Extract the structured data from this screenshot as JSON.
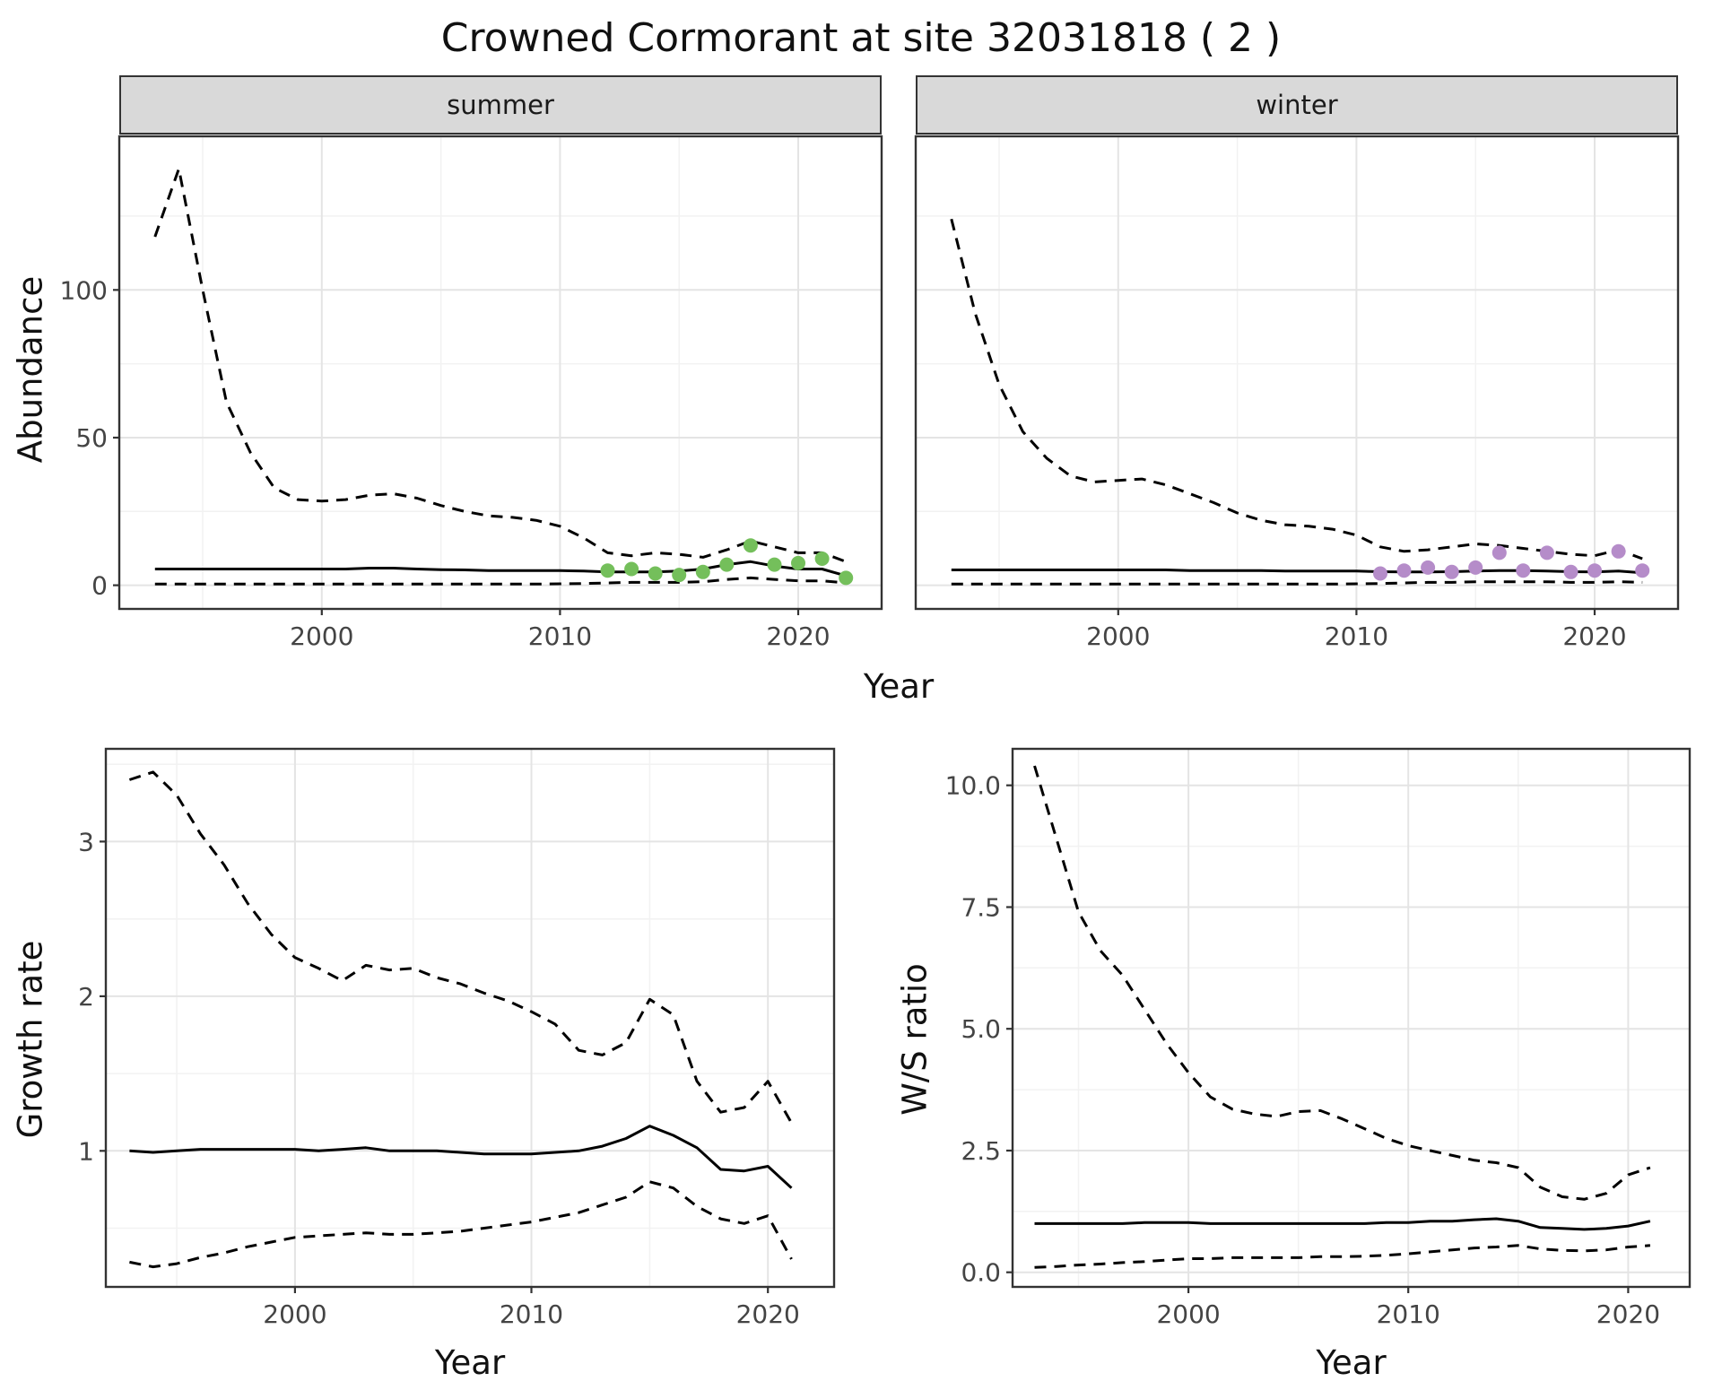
{
  "title": "Crowned Cormorant at site 32031818 ( 2 )",
  "colors": {
    "line": "#000000",
    "summer_points": "#74BF5B",
    "winter_points": "#B58CC9",
    "strip_bg": "#D9D9D9",
    "panel_border": "#333333",
    "grid_major": "#E4E4E4",
    "grid_minor": "#F2F2F2",
    "tick_label": "#444444",
    "text": "#1A1A1A"
  },
  "chart_data": [
    {
      "id": "abundance-summer",
      "type": "line",
      "facet": "summer",
      "title": "",
      "xlabel": "Year",
      "ylabel": "Abundance",
      "xlim": [
        1991.5,
        2023.5
      ],
      "ylim": [
        -8,
        152
      ],
      "xticks": [
        2000,
        2010,
        2020
      ],
      "xtick_labels": [
        "2000",
        "2010",
        "2020"
      ],
      "yticks": [
        0,
        50,
        100
      ],
      "ytick_labels": [
        "0",
        "50",
        "100"
      ],
      "grid": true,
      "x": [
        1993,
        1994,
        1995,
        1996,
        1997,
        1998,
        1999,
        2000,
        2001,
        2002,
        2003,
        2004,
        2005,
        2006,
        2007,
        2008,
        2009,
        2010,
        2011,
        2012,
        2013,
        2014,
        2015,
        2016,
        2017,
        2018,
        2019,
        2020,
        2021,
        2022
      ],
      "series": [
        {
          "name": "upper_ci",
          "style": "dashed",
          "y": [
            118,
            141,
            100,
            62,
            45,
            33,
            29,
            28.5,
            29,
            30.5,
            31,
            29.5,
            27,
            25,
            23.5,
            23,
            22,
            20,
            16,
            11,
            10,
            11,
            10.5,
            9.5,
            12,
            15,
            13,
            11,
            11,
            8
          ]
        },
        {
          "name": "median",
          "style": "solid",
          "y": [
            5.5,
            5.5,
            5.5,
            5.5,
            5.5,
            5.5,
            5.5,
            5.5,
            5.5,
            5.8,
            5.8,
            5.5,
            5.3,
            5.2,
            5,
            5,
            5,
            5,
            4.8,
            4.5,
            4.5,
            4.5,
            4.8,
            5.5,
            7,
            8,
            6.5,
            5.5,
            5.5,
            3.2
          ]
        },
        {
          "name": "lower_ci",
          "style": "dashed",
          "y": [
            0.4,
            0.4,
            0.4,
            0.4,
            0.4,
            0.4,
            0.4,
            0.4,
            0.4,
            0.4,
            0.4,
            0.4,
            0.4,
            0.4,
            0.4,
            0.4,
            0.4,
            0.5,
            0.6,
            0.8,
            1,
            1,
            1,
            1.2,
            2,
            2.5,
            2,
            1.5,
            1.5,
            0.8
          ]
        }
      ],
      "points": {
        "name": "observed_counts",
        "color": "#74BF5B",
        "x": [
          2012,
          2013,
          2014,
          2015,
          2016,
          2017,
          2018,
          2019,
          2020,
          2021,
          2022
        ],
        "y": [
          5,
          5.5,
          4,
          3.5,
          4.5,
          7,
          13.5,
          7,
          7.5,
          9,
          2.5
        ]
      }
    },
    {
      "id": "abundance-winter",
      "type": "line",
      "facet": "winter",
      "title": "",
      "xlabel": "Year",
      "ylabel": "Abundance",
      "xlim": [
        1991.5,
        2023.5
      ],
      "ylim": [
        -8,
        152
      ],
      "xticks": [
        2000,
        2010,
        2020
      ],
      "xtick_labels": [
        "2000",
        "2010",
        "2020"
      ],
      "yticks": [
        0,
        50,
        100
      ],
      "ytick_labels": [
        "0",
        "50",
        "100"
      ],
      "grid": true,
      "x": [
        1993,
        1994,
        1995,
        1996,
        1997,
        1998,
        1999,
        2000,
        2001,
        2002,
        2003,
        2004,
        2005,
        2006,
        2007,
        2008,
        2009,
        2010,
        2011,
        2012,
        2013,
        2014,
        2015,
        2016,
        2017,
        2018,
        2019,
        2020,
        2021,
        2022
      ],
      "series": [
        {
          "name": "upper_ci",
          "style": "dashed",
          "y": [
            124,
            92,
            68,
            52,
            43,
            37,
            35,
            35.5,
            36,
            34,
            31,
            28,
            24.5,
            22,
            20.5,
            20,
            19,
            17,
            13,
            11.5,
            12,
            13,
            14,
            13.5,
            12.5,
            11.5,
            10.5,
            10,
            12,
            9
          ]
        },
        {
          "name": "median",
          "style": "solid",
          "y": [
            5.2,
            5.2,
            5.2,
            5.2,
            5.2,
            5.2,
            5.2,
            5.2,
            5.2,
            5.2,
            5,
            5,
            5,
            5,
            4.8,
            4.8,
            4.8,
            4.8,
            4.6,
            4.5,
            4.5,
            4.6,
            4.8,
            5,
            5,
            4.8,
            4.6,
            4.5,
            4.8,
            4.2
          ]
        },
        {
          "name": "lower_ci",
          "style": "dashed",
          "y": [
            0.4,
            0.4,
            0.4,
            0.4,
            0.4,
            0.4,
            0.4,
            0.4,
            0.4,
            0.4,
            0.4,
            0.4,
            0.4,
            0.4,
            0.4,
            0.4,
            0.4,
            0.5,
            0.6,
            0.8,
            1,
            1,
            1.2,
            1.2,
            1.2,
            1.2,
            1,
            1,
            1.2,
            1
          ]
        }
      ],
      "points": {
        "name": "observed_counts",
        "color": "#B58CC9",
        "x": [
          2011,
          2012,
          2013,
          2014,
          2015,
          2016,
          2017,
          2018,
          2019,
          2020,
          2021,
          2022
        ],
        "y": [
          4,
          5,
          6,
          4.5,
          6,
          11,
          5,
          11,
          4.5,
          5,
          11.5,
          5
        ]
      }
    },
    {
      "id": "growth-rate",
      "type": "line",
      "facet": "",
      "title": "",
      "xlabel": "Year",
      "ylabel": "Growth rate",
      "xlim": [
        1992,
        2022.8
      ],
      "ylim": [
        0.12,
        3.6
      ],
      "xticks": [
        2000,
        2010,
        2020
      ],
      "xtick_labels": [
        "2000",
        "2010",
        "2020"
      ],
      "yticks": [
        1,
        2,
        3
      ],
      "ytick_labels": [
        "1",
        "2",
        "3"
      ],
      "grid": true,
      "x": [
        1993,
        1994,
        1995,
        1996,
        1997,
        1998,
        1999,
        2000,
        2001,
        2002,
        2003,
        2004,
        2005,
        2006,
        2007,
        2008,
        2009,
        2010,
        2011,
        2012,
        2013,
        2014,
        2015,
        2016,
        2017,
        2018,
        2019,
        2020,
        2021
      ],
      "series": [
        {
          "name": "upper_ci",
          "style": "dashed",
          "y": [
            3.4,
            3.45,
            3.3,
            3.05,
            2.85,
            2.6,
            2.4,
            2.25,
            2.18,
            2.1,
            2.2,
            2.17,
            2.18,
            2.12,
            2.08,
            2.02,
            1.97,
            1.9,
            1.82,
            1.65,
            1.62,
            1.7,
            1.98,
            1.88,
            1.45,
            1.25,
            1.28,
            1.45,
            1.18
          ]
        },
        {
          "name": "median",
          "style": "solid",
          "y": [
            1.0,
            0.99,
            1.0,
            1.01,
            1.01,
            1.01,
            1.01,
            1.01,
            1.0,
            1.01,
            1.02,
            1.0,
            1.0,
            1.0,
            0.99,
            0.98,
            0.98,
            0.98,
            0.99,
            1.0,
            1.03,
            1.08,
            1.16,
            1.1,
            1.02,
            0.88,
            0.87,
            0.9,
            0.76
          ]
        },
        {
          "name": "lower_ci",
          "style": "dashed",
          "y": [
            0.28,
            0.25,
            0.27,
            0.31,
            0.34,
            0.38,
            0.41,
            0.44,
            0.45,
            0.46,
            0.47,
            0.46,
            0.46,
            0.47,
            0.48,
            0.5,
            0.52,
            0.54,
            0.57,
            0.6,
            0.65,
            0.7,
            0.8,
            0.76,
            0.64,
            0.56,
            0.53,
            0.58,
            0.3
          ]
        }
      ]
    },
    {
      "id": "ws-ratio",
      "type": "line",
      "facet": "",
      "title": "",
      "xlabel": "Year",
      "ylabel": "W/S ratio",
      "xlim": [
        1992,
        2022.8
      ],
      "ylim": [
        -0.3,
        10.75
      ],
      "xticks": [
        2000,
        2010,
        2020
      ],
      "xtick_labels": [
        "2000",
        "2010",
        "2020"
      ],
      "yticks": [
        0,
        2.5,
        5,
        7.5,
        10
      ],
      "ytick_labels": [
        "0.0",
        "2.5",
        "5.0",
        "7.5",
        "10.0"
      ],
      "grid": true,
      "x": [
        1993,
        1994,
        1995,
        1996,
        1997,
        1998,
        1999,
        2000,
        2001,
        2002,
        2003,
        2004,
        2005,
        2006,
        2007,
        2008,
        2009,
        2010,
        2011,
        2012,
        2013,
        2014,
        2015,
        2016,
        2017,
        2018,
        2019,
        2020,
        2021
      ],
      "series": [
        {
          "name": "upper_ci",
          "style": "dashed",
          "y": [
            10.4,
            8.9,
            7.4,
            6.6,
            6.1,
            5.4,
            4.7,
            4.1,
            3.6,
            3.35,
            3.25,
            3.2,
            3.3,
            3.32,
            3.15,
            2.95,
            2.75,
            2.6,
            2.5,
            2.4,
            2.3,
            2.25,
            2.15,
            1.75,
            1.55,
            1.5,
            1.62,
            2.0,
            2.15
          ]
        },
        {
          "name": "median",
          "style": "solid",
          "y": [
            1.0,
            1.0,
            1.0,
            1.0,
            1.0,
            1.02,
            1.02,
            1.02,
            1.0,
            1.0,
            1.0,
            1.0,
            1.0,
            1.0,
            1.0,
            1.0,
            1.02,
            1.02,
            1.05,
            1.05,
            1.08,
            1.1,
            1.05,
            0.92,
            0.9,
            0.88,
            0.9,
            0.95,
            1.05
          ]
        },
        {
          "name": "lower_ci",
          "style": "dashed",
          "y": [
            0.1,
            0.12,
            0.15,
            0.17,
            0.2,
            0.22,
            0.25,
            0.28,
            0.28,
            0.3,
            0.3,
            0.3,
            0.3,
            0.32,
            0.32,
            0.33,
            0.35,
            0.38,
            0.42,
            0.46,
            0.5,
            0.52,
            0.55,
            0.48,
            0.45,
            0.44,
            0.46,
            0.52,
            0.55
          ]
        }
      ]
    }
  ]
}
